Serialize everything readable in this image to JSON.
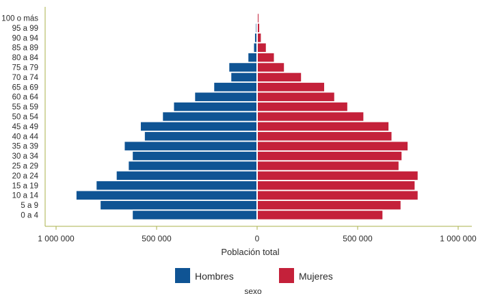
{
  "chart_data": {
    "type": "bar",
    "orientation": "horizontal-pyramid",
    "xlabel": "Población total",
    "legend_title": "sexo",
    "legend_placement": "bottom",
    "grid": false,
    "xlim": [
      -1000000,
      1000000
    ],
    "x_ticks": [
      -1000000,
      -500000,
      0,
      500000,
      1000000
    ],
    "x_tick_labels": [
      "1 000 000",
      "500 000",
      "0",
      "500 000",
      "1 000 000"
    ],
    "categories": [
      "0 a 4",
      "5 a 9",
      "10 a 14",
      "15 a 19",
      "20 a 24",
      "25 a 29",
      "30 a 34",
      "35 a 39",
      "40 a 44",
      "45 a 49",
      "50 a 54",
      "55 a 59",
      "60 a 64",
      "65 a 69",
      "70 a 74",
      "75 a 79",
      "80 a 84",
      "85 a 89",
      "90 a 94",
      "95 a 99",
      "100 o más"
    ],
    "series": [
      {
        "name": "Hombres",
        "color": "#0f5494",
        "values": [
          615000,
          775000,
          895000,
          795000,
          695000,
          635000,
          615000,
          655000,
          555000,
          575000,
          465000,
          410000,
          305000,
          210000,
          125000,
          135000,
          40000,
          12000,
          7000,
          2000,
          0
        ]
      },
      {
        "name": "Mujeres",
        "color": "#c4213a",
        "values": [
          620000,
          710000,
          795000,
          780000,
          795000,
          700000,
          715000,
          745000,
          665000,
          650000,
          525000,
          445000,
          380000,
          330000,
          215000,
          130000,
          80000,
          40000,
          15000,
          7000,
          1000
        ]
      }
    ]
  }
}
